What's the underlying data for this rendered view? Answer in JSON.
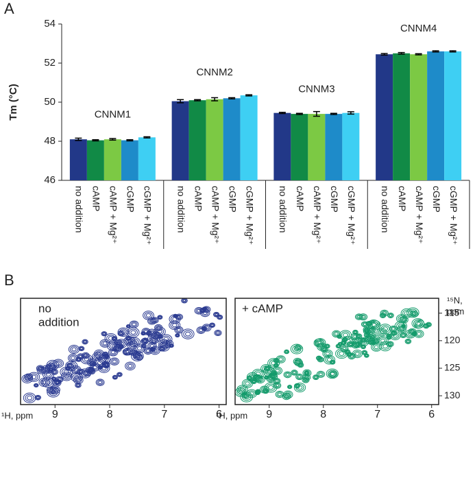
{
  "chart_data": [
    {
      "type": "bar",
      "panel": "A",
      "ylabel": "Tm (°C)",
      "categories": [
        "CNNM1",
        "CNNM2",
        "CNNM3",
        "CNNM4"
      ],
      "series": [
        {
          "name": "no addition",
          "color": "#223888",
          "values": [
            48.1,
            50.05,
            49.45,
            52.45
          ],
          "errors": [
            0.06,
            0.08,
            0.03,
            0.04
          ]
        },
        {
          "name": "cAMP",
          "color": "#118a46",
          "values": [
            48.05,
            50.1,
            49.4,
            52.5
          ],
          "errors": [
            0.03,
            0.03,
            0.03,
            0.04
          ]
        },
        {
          "name": "cAMP + Mg²⁺",
          "color": "#7cc944",
          "values": [
            48.1,
            50.15,
            49.4,
            52.45
          ],
          "errors": [
            0.04,
            0.08,
            0.12,
            0.03
          ]
        },
        {
          "name": "cGMP",
          "color": "#1e8bc9",
          "values": [
            48.05,
            50.2,
            49.4,
            52.6
          ],
          "errors": [
            0.03,
            0.03,
            0.03,
            0.03
          ]
        },
        {
          "name": "cGMP + Mg²⁺",
          "color": "#3ecff3",
          "values": [
            48.2,
            50.35,
            49.45,
            52.6
          ],
          "errors": [
            0.03,
            0.03,
            0.06,
            0.03
          ]
        }
      ],
      "ylim": [
        46,
        54
      ],
      "yticks": [
        46,
        48,
        50,
        52,
        54
      ]
    },
    {
      "type": "contour",
      "panel": "B",
      "annotation": [
        "no",
        "addition"
      ],
      "color": "#2a3a90",
      "xlabel": "¹H, ppm",
      "xlim": [
        9.63,
        5.87
      ],
      "xticks": [
        9,
        8,
        7,
        6
      ],
      "ylim": [
        112.3,
        131.6
      ]
    },
    {
      "type": "contour",
      "annotation": [
        "+ cAMP"
      ],
      "color": "#129a6a",
      "xlabel": "¹H, ppm",
      "xlim": [
        9.63,
        5.87
      ],
      "xticks": [
        9,
        8,
        7,
        6
      ],
      "ylim": [
        112.3,
        131.6
      ],
      "ylabel": [
        "¹⁵N,",
        "ppm"
      ],
      "yticks": [
        115,
        120,
        125,
        130
      ]
    }
  ]
}
